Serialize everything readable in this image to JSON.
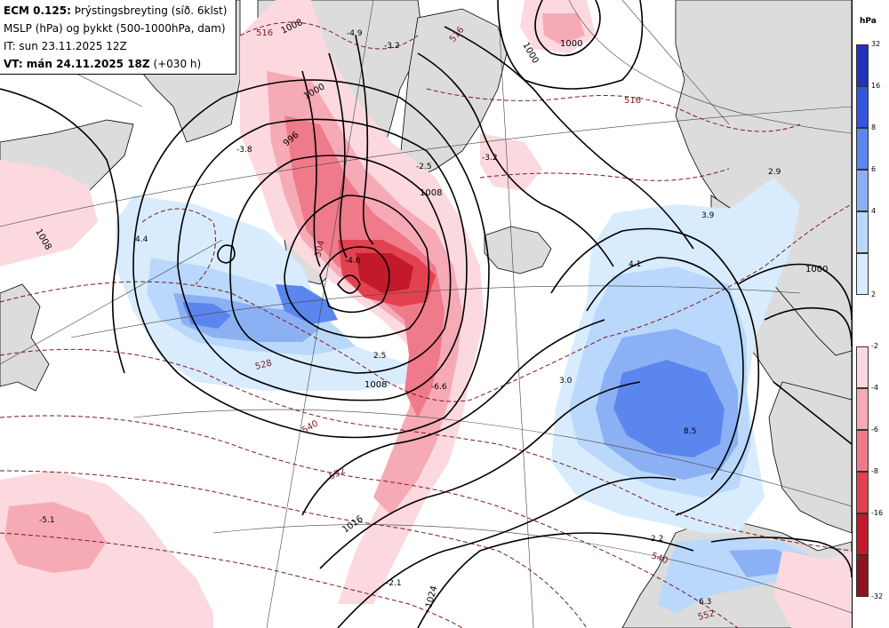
{
  "header": {
    "model": "ECM 0.125:",
    "title": "Þrýstingsbreyting (síð. 6klst)",
    "line2": "MSLP (hPa) og þykkt (500-1000hPa, dam)",
    "init": "IT: sun 23.11.2025 12Z",
    "valid_bold": "VT: mán 24.11.2025 18Z",
    "valid_extra": "(+030 h)"
  },
  "legend": {
    "unit": "hPa",
    "positive": [
      {
        "label": "32",
        "color": "#2233bb"
      },
      {
        "label": "16",
        "color": "#3355dd"
      },
      {
        "label": "8",
        "color": "#5b86ee"
      },
      {
        "label": "6",
        "color": "#8cb0f4"
      },
      {
        "label": "4",
        "color": "#b9d8fb"
      },
      {
        "label": "2",
        "color": "#d8ecfd"
      }
    ],
    "negative": [
      {
        "label": "-2",
        "color": "#fbd9df"
      },
      {
        "label": "-4",
        "color": "#f6aab6"
      },
      {
        "label": "-6",
        "color": "#ee7a8a"
      },
      {
        "label": "-8",
        "color": "#e2424f"
      },
      {
        "label": "-16",
        "color": "#c21a2a"
      },
      {
        "label": "-32",
        "color": "#8e1520"
      }
    ]
  },
  "map_labels": {
    "isobars": [
      "1008",
      "1000",
      "996",
      "1000",
      "1008",
      "1008",
      "1016",
      "1024",
      "1000",
      "1000",
      "1008"
    ],
    "thickness": [
      "516",
      "516",
      "528",
      "540",
      "552",
      "516",
      "540",
      "552",
      "504"
    ],
    "pressure_change": [
      "-4.9",
      "-3.2",
      "-3.8",
      "4.4",
      "-2.5",
      "-4.6",
      "-3.2",
      "-5.1",
      "2.5",
      "-6.6",
      "4.1",
      "3.0",
      "3.9",
      "2.9",
      "8.5",
      "2.2",
      "6.3",
      "-2.1"
    ]
  }
}
